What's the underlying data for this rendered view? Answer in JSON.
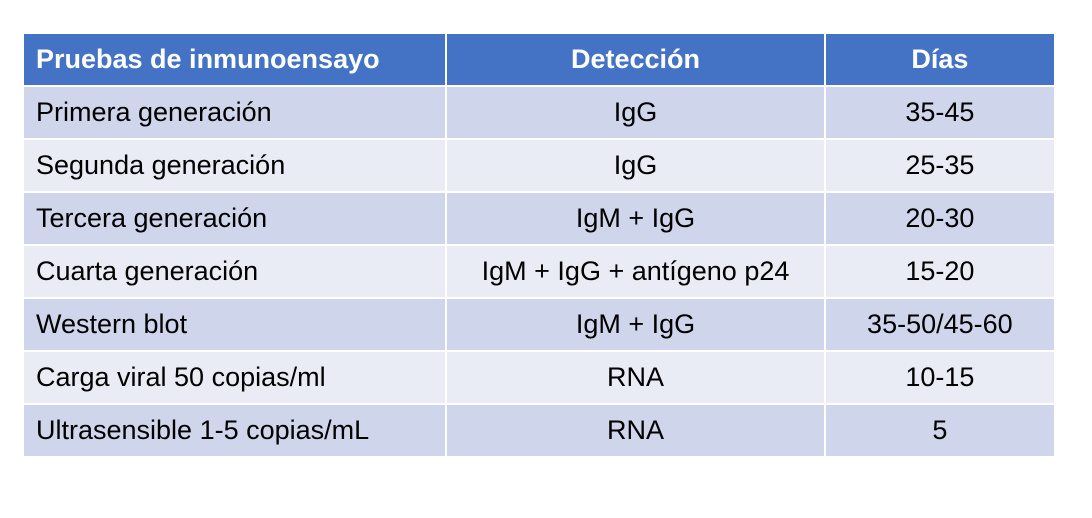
{
  "table": {
    "header": [
      "Pruebas de inmunoensayo",
      "Detección",
      "Días"
    ],
    "rows": [
      [
        "Primera generación",
        "IgG",
        "35-45"
      ],
      [
        "Segunda generación",
        "IgG",
        "25-35"
      ],
      [
        "Tercera generación",
        "IgM + IgG",
        "20-30"
      ],
      [
        "Cuarta generación",
        "IgM + IgG + antígeno p24",
        "15-20"
      ],
      [
        "Western blot",
        "IgM + IgG",
        "35-50/45-60"
      ],
      [
        "Carga viral 50 copias/ml",
        "RNA",
        "10-15"
      ],
      [
        "Ultrasensible 1-5 copias/mL",
        "RNA",
        "5"
      ]
    ]
  }
}
